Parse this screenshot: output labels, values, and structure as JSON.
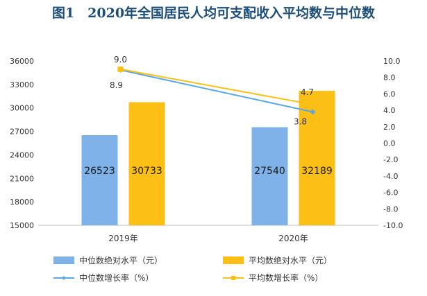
{
  "chart_data": {
    "type": "bar+line",
    "title": "图1　2020年全国居民人均可支配收入平均数与中位数",
    "categories": [
      "2019年",
      "2020年"
    ],
    "bar_series": [
      {
        "name": "中位数绝对水平（元）",
        "values": [
          26523,
          27540
        ],
        "color": "#7fb2e8"
      },
      {
        "name": "平均数绝对水平（元）",
        "values": [
          30733,
          32189
        ],
        "color": "#fbbf16"
      }
    ],
    "line_series": [
      {
        "name": "中位数增长率（%）",
        "values": [
          8.9,
          3.8
        ],
        "color": "#5aa7e6"
      },
      {
        "name": "平均数增长率（%）",
        "values": [
          9.0,
          4.7
        ],
        "color": "#fbbf16"
      }
    ],
    "ylim_left": [
      15000,
      36000
    ],
    "yticks_left": [
      15000,
      18000,
      21000,
      24000,
      27000,
      30000,
      33000,
      36000
    ],
    "ylim_right": [
      -10.0,
      10.0
    ],
    "yticks_right": [
      "10.0",
      "8.0",
      "6.0",
      "4.0",
      "2.0",
      "0.0",
      "-2.0",
      "-4.0",
      "-6.0",
      "-8.0",
      "-10.0"
    ],
    "line_labels": {
      "median": [
        "8.9",
        "3.8"
      ],
      "mean": [
        "9.0",
        "4.7"
      ]
    },
    "legend_position": "bottom",
    "grid": false
  }
}
